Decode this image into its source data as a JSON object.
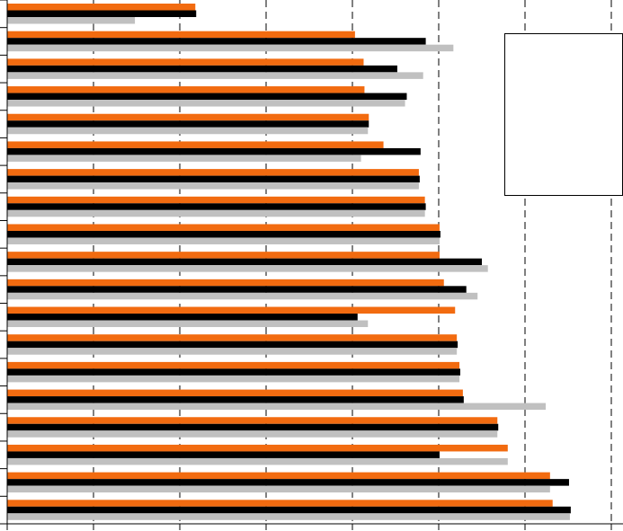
{
  "chart_data": {
    "type": "hbar",
    "categories": [
      null,
      null,
      null,
      null,
      null,
      null,
      null,
      null,
      null,
      null,
      null,
      null,
      null,
      null,
      null,
      null,
      null,
      null,
      null
    ],
    "series": [
      {
        "color": "#f26b10",
        "values": [
          2.18,
          4.03,
          4.13,
          4.14,
          4.19,
          4.36,
          4.77,
          4.84,
          5.01,
          5.01,
          5.06,
          5.19,
          5.21,
          5.24,
          5.28,
          5.68,
          5.8,
          6.29,
          6.32
        ]
      },
      {
        "color": "#000000",
        "values": [
          2.19,
          4.85,
          4.52,
          4.63,
          4.19,
          4.79,
          4.78,
          4.85,
          5.02,
          5.5,
          5.32,
          4.06,
          5.22,
          5.25,
          5.29,
          5.69,
          5.01,
          6.51,
          6.53
        ]
      },
      {
        "color": "#c0c0c0",
        "values": [
          1.48,
          5.17,
          4.82,
          4.61,
          4.18,
          4.1,
          4.77,
          4.84,
          5.01,
          5.57,
          5.45,
          4.18,
          5.21,
          5.24,
          6.24,
          5.68,
          5.8,
          6.29,
          6.52
        ]
      }
    ],
    "xlim": [
      0,
      7
    ],
    "xticks": [
      0,
      1,
      2,
      3,
      4,
      5,
      6,
      7
    ],
    "grid": true
  }
}
